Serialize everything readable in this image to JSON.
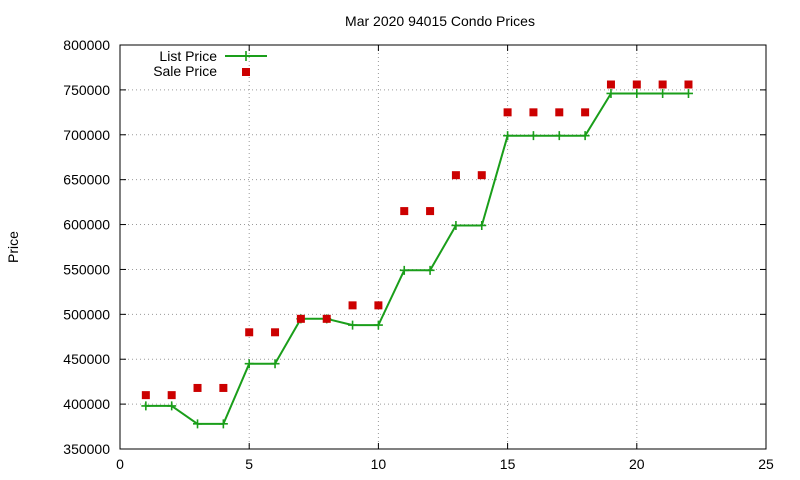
{
  "chart_data": {
    "type": "line",
    "title": "Mar 2020 94015 Condo Prices",
    "xlabel": "",
    "ylabel": "Price",
    "xlim": [
      0,
      25
    ],
    "ylim": [
      350000,
      800000
    ],
    "xticks": [
      0,
      5,
      10,
      15,
      20,
      25
    ],
    "yticks": [
      350000,
      400000,
      450000,
      500000,
      550000,
      600000,
      650000,
      700000,
      750000,
      800000
    ],
    "grid": true,
    "legend_position": "top-left",
    "x": [
      1,
      2,
      3,
      4,
      5,
      6,
      7,
      8,
      9,
      10,
      11,
      12,
      13,
      14,
      15,
      16,
      17,
      18,
      19,
      20,
      21,
      22
    ],
    "series": [
      {
        "name": "List Price",
        "style": "line-with-plus-markers",
        "color": "#1a9e1a",
        "values": [
          398000,
          398000,
          378000,
          378000,
          445000,
          445000,
          495000,
          495000,
          488000,
          488000,
          549000,
          549000,
          599000,
          599000,
          699000,
          699000,
          699000,
          699000,
          746000,
          746000,
          746000,
          746000
        ]
      },
      {
        "name": "Sale Price",
        "style": "square-markers",
        "color": "#cc0000",
        "values": [
          410000,
          410000,
          418000,
          418000,
          480000,
          480000,
          495000,
          495000,
          510000,
          510000,
          615000,
          615000,
          655000,
          655000,
          725000,
          725000,
          725000,
          725000,
          756000,
          756000,
          756000,
          756000
        ]
      }
    ]
  }
}
